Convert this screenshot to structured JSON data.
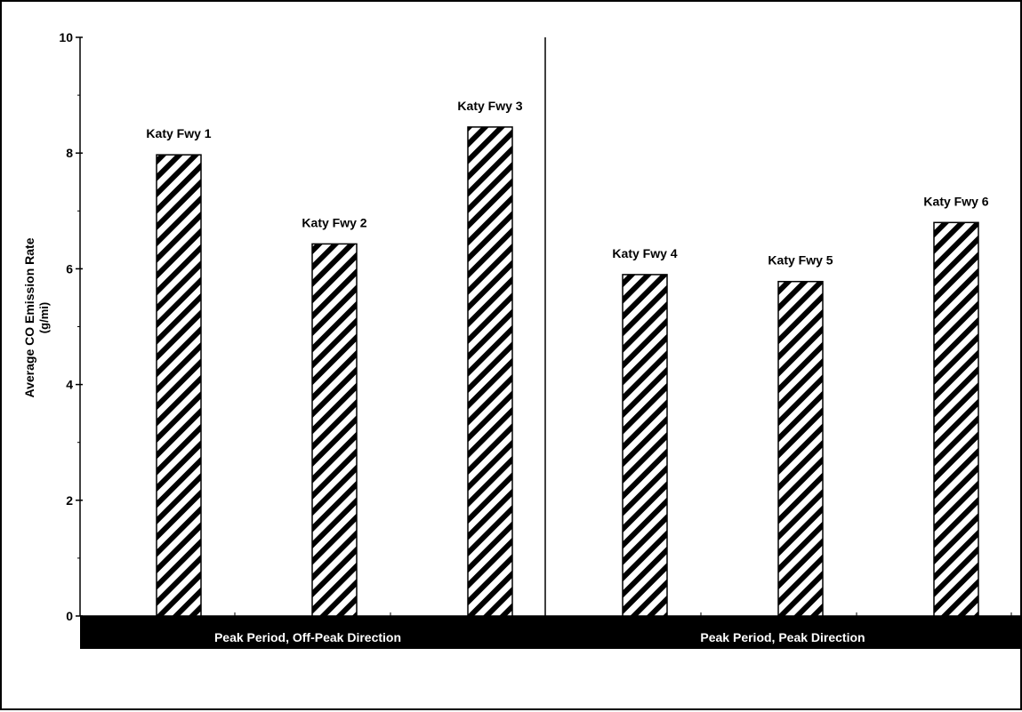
{
  "chart_data": {
    "type": "bar",
    "categories": [
      "Katy Fwy 1",
      "Katy Fwy 2",
      "Katy Fwy 3",
      "Katy Fwy 4",
      "Katy Fwy 5",
      "Katy Fwy 6"
    ],
    "values": [
      7.97,
      6.43,
      8.45,
      5.9,
      5.78,
      6.8
    ],
    "groups": [
      {
        "label": "Peak Period, Off-Peak Direction",
        "categories": [
          "Katy Fwy 1",
          "Katy Fwy 2",
          "Katy Fwy 3"
        ]
      },
      {
        "label": "Peak Period, Peak Direction",
        "categories": [
          "Katy Fwy 4",
          "Katy Fwy 5",
          "Katy Fwy 6"
        ]
      }
    ],
    "title": "",
    "xlabel": "",
    "ylabel": "Average CO Emission Rate",
    "ylabel_unit": "(g/mi)",
    "ylim": [
      0,
      10
    ],
    "yticks": [
      "0",
      "2",
      "4",
      "6",
      "8",
      "10"
    ],
    "grid": false,
    "bar_fill": "diagonal-hatch",
    "colors": {
      "bar_stroke": "#000000",
      "hatch": "#000000",
      "group_band": "#000000",
      "group_text": "#ffffff"
    }
  }
}
